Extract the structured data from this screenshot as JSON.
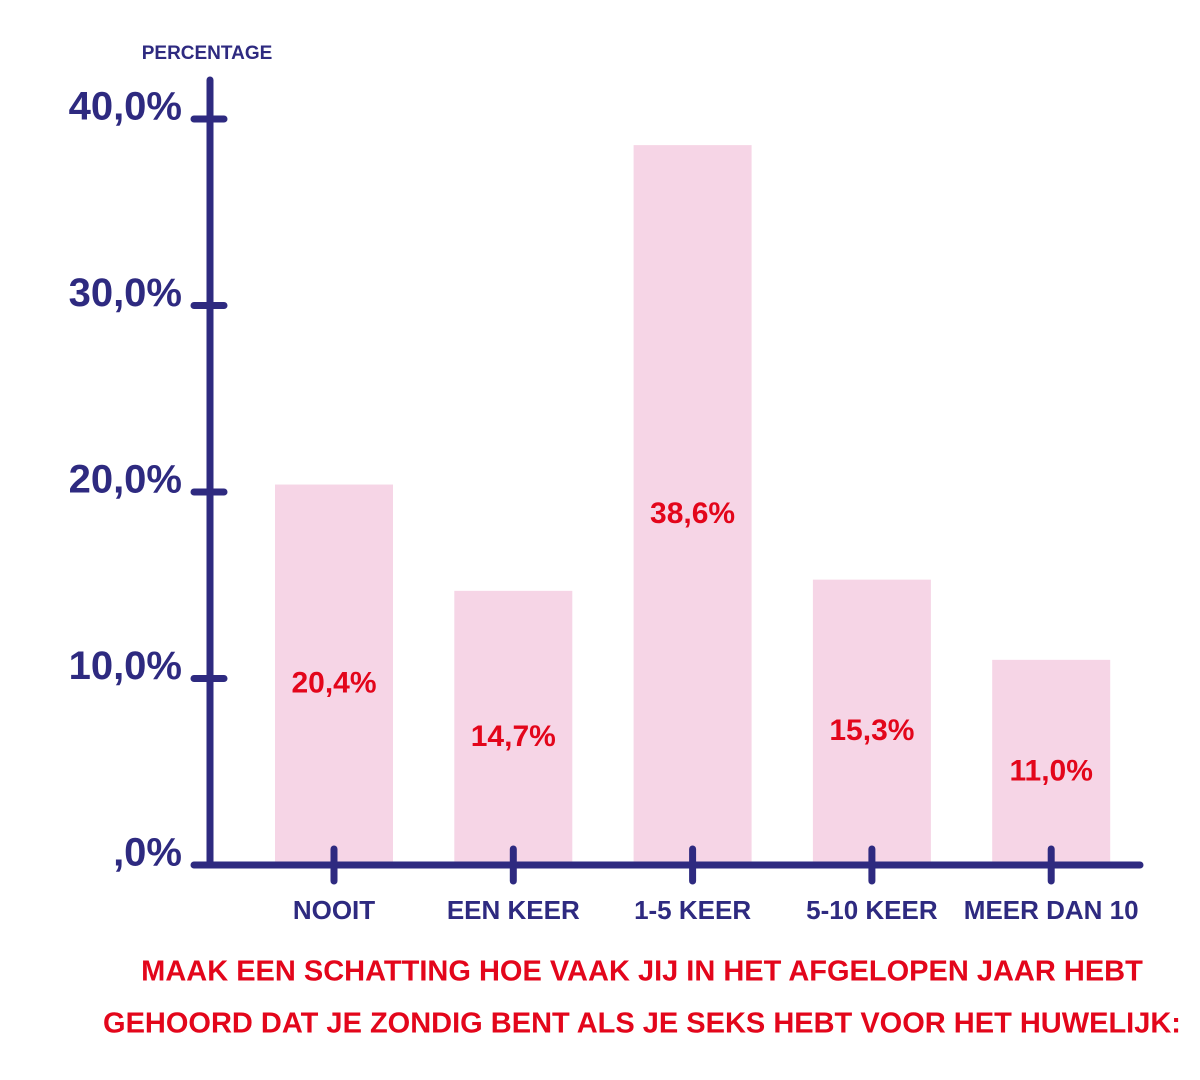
{
  "chart_data": {
    "type": "bar",
    "title": [
      "MAAK EEN SCHATTING HOE  VAAK JIJ  IN HET  AFGELOPEN JAAR  HEBT",
      "GEHOORD DAT JE ZONDIG BENT  ALS JE  SEKS HEBT  VOOR HET HUWELIJK:"
    ],
    "ylabel": "PERCENTAGE",
    "categories": [
      "NOOIT",
      "EEN KEER",
      "1-5 KEER",
      "5-10 KEER",
      "MEER DAN 10"
    ],
    "values": [
      20.4,
      14.7,
      38.6,
      15.3,
      11.0
    ],
    "value_labels": [
      "20,4%",
      "14,7%",
      "38,6%",
      "15,3%",
      "11,0%"
    ],
    "color": "#f6d5e6",
    "label_color": "#e3061b",
    "axis_color": "#2e2a80",
    "ylim": [
      0,
      40
    ],
    "yticks": [
      {
        "value": 0,
        "label": ",0%"
      },
      {
        "value": 10,
        "label": "10,0%"
      },
      {
        "value": 20,
        "label": "20,0%"
      },
      {
        "value": 30,
        "label": "30,0%"
      },
      {
        "value": 40,
        "label": "40,0%"
      }
    ]
  }
}
